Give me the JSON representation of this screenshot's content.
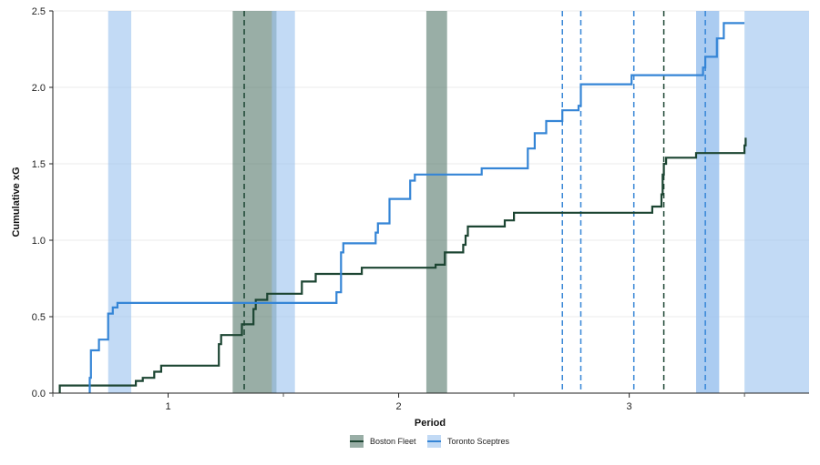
{
  "chart_data": {
    "type": "line",
    "title": "",
    "xlabel": "Period",
    "ylabel": "Cumulative xG",
    "xlim": [
      0.5,
      3.78
    ],
    "ylim": [
      0,
      2.5
    ],
    "yticks": [
      0.0,
      0.5,
      1.0,
      1.5,
      2.0,
      2.5
    ],
    "ytick_labels": [
      "0.0",
      "0.5",
      "1.0",
      "1.5",
      "2.0",
      "2.5"
    ],
    "xticks": [
      1,
      2,
      3
    ],
    "xtick_labels": [
      "1",
      "2",
      "3"
    ],
    "minor_xticks": [
      0.5,
      1.5,
      2.5,
      3.5
    ],
    "grid": "horizontal",
    "legend_position": "bottom-center",
    "series": [
      {
        "name": "Boston Fleet",
        "color": "#1c4532",
        "band_color": "#5a7d70",
        "points": [
          [
            0.53,
            0
          ],
          [
            0.53,
            0.05
          ],
          [
            0.86,
            0.05
          ],
          [
            0.86,
            0.08
          ],
          [
            0.89,
            0.08
          ],
          [
            0.89,
            0.1
          ],
          [
            0.94,
            0.1
          ],
          [
            0.94,
            0.14
          ],
          [
            0.97,
            0.14
          ],
          [
            0.97,
            0.18
          ],
          [
            1.22,
            0.18
          ],
          [
            1.22,
            0.32
          ],
          [
            1.23,
            0.32
          ],
          [
            1.23,
            0.38
          ],
          [
            1.32,
            0.38
          ],
          [
            1.32,
            0.45
          ],
          [
            1.37,
            0.45
          ],
          [
            1.37,
            0.55
          ],
          [
            1.38,
            0.55
          ],
          [
            1.38,
            0.61
          ],
          [
            1.43,
            0.61
          ],
          [
            1.43,
            0.65
          ],
          [
            1.58,
            0.65
          ],
          [
            1.58,
            0.73
          ],
          [
            1.64,
            0.73
          ],
          [
            1.64,
            0.78
          ],
          [
            1.84,
            0.78
          ],
          [
            1.84,
            0.82
          ],
          [
            2.16,
            0.82
          ],
          [
            2.16,
            0.84
          ],
          [
            2.2,
            0.84
          ],
          [
            2.2,
            0.92
          ],
          [
            2.28,
            0.92
          ],
          [
            2.28,
            0.97
          ],
          [
            2.29,
            0.97
          ],
          [
            2.29,
            1.03
          ],
          [
            2.3,
            1.03
          ],
          [
            2.3,
            1.09
          ],
          [
            2.46,
            1.09
          ],
          [
            2.46,
            1.13
          ],
          [
            2.5,
            1.13
          ],
          [
            2.5,
            1.18
          ],
          [
            3.1,
            1.18
          ],
          [
            3.1,
            1.22
          ],
          [
            3.14,
            1.22
          ],
          [
            3.14,
            1.3
          ],
          [
            3.145,
            1.3
          ],
          [
            3.145,
            1.43
          ],
          [
            3.15,
            1.43
          ],
          [
            3.15,
            1.5
          ],
          [
            3.16,
            1.5
          ],
          [
            3.16,
            1.54
          ],
          [
            3.29,
            1.54
          ],
          [
            3.29,
            1.57
          ],
          [
            3.5,
            1.57
          ],
          [
            3.5,
            1.62
          ],
          [
            3.505,
            1.62
          ],
          [
            3.505,
            1.67
          ]
        ]
      },
      {
        "name": "Toronto Sceptres",
        "color": "#3585d6",
        "band_color": "#9cc4ef",
        "points": [
          [
            0.66,
            0
          ],
          [
            0.66,
            0.1
          ],
          [
            0.665,
            0.1
          ],
          [
            0.665,
            0.28
          ],
          [
            0.7,
            0.28
          ],
          [
            0.7,
            0.35
          ],
          [
            0.74,
            0.35
          ],
          [
            0.74,
            0.52
          ],
          [
            0.76,
            0.52
          ],
          [
            0.76,
            0.56
          ],
          [
            0.78,
            0.56
          ],
          [
            0.78,
            0.59
          ],
          [
            1.73,
            0.59
          ],
          [
            1.73,
            0.66
          ],
          [
            1.75,
            0.66
          ],
          [
            1.75,
            0.92
          ],
          [
            1.76,
            0.92
          ],
          [
            1.76,
            0.98
          ],
          [
            1.9,
            0.98
          ],
          [
            1.9,
            1.05
          ],
          [
            1.91,
            1.05
          ],
          [
            1.91,
            1.11
          ],
          [
            1.96,
            1.11
          ],
          [
            1.96,
            1.27
          ],
          [
            2.05,
            1.27
          ],
          [
            2.05,
            1.39
          ],
          [
            2.07,
            1.39
          ],
          [
            2.07,
            1.43
          ],
          [
            2.36,
            1.43
          ],
          [
            2.36,
            1.47
          ],
          [
            2.56,
            1.47
          ],
          [
            2.56,
            1.6
          ],
          [
            2.59,
            1.6
          ],
          [
            2.59,
            1.7
          ],
          [
            2.64,
            1.7
          ],
          [
            2.64,
            1.78
          ],
          [
            2.71,
            1.78
          ],
          [
            2.71,
            1.85
          ],
          [
            2.78,
            1.85
          ],
          [
            2.78,
            1.88
          ],
          [
            2.79,
            1.88
          ],
          [
            2.79,
            2.02
          ],
          [
            3.01,
            2.02
          ],
          [
            3.01,
            2.08
          ],
          [
            3.32,
            2.08
          ],
          [
            3.32,
            2.13
          ],
          [
            3.33,
            2.13
          ],
          [
            3.33,
            2.2
          ],
          [
            3.38,
            2.2
          ],
          [
            3.38,
            2.32
          ],
          [
            3.41,
            2.32
          ],
          [
            3.41,
            2.42
          ],
          [
            3.5,
            2.42
          ]
        ]
      }
    ],
    "bands": [
      {
        "team": "Toronto Sceptres",
        "x0": 0.74,
        "x1": 0.84
      },
      {
        "team": "Boston Fleet",
        "x0": 1.28,
        "x1": 1.47
      },
      {
        "team": "Toronto Sceptres",
        "x0": 1.45,
        "x1": 1.55
      },
      {
        "team": "Boston Fleet",
        "x0": 2.12,
        "x1": 2.21
      },
      {
        "team": "Toronto Sceptres",
        "x0": 3.29,
        "x1": 3.39
      },
      {
        "team": "Toronto Sceptres",
        "x0": 3.29,
        "x1": 3.39
      },
      {
        "team": "Toronto Sceptres",
        "x0": 3.5,
        "x1": 3.78
      }
    ],
    "goal_lines": [
      {
        "team": "Boston Fleet",
        "x": 1.33
      },
      {
        "team": "Boston Fleet",
        "x": 3.15
      },
      {
        "team": "Toronto Sceptres",
        "x": 2.71
      },
      {
        "team": "Toronto Sceptres",
        "x": 2.79
      },
      {
        "team": "Toronto Sceptres",
        "x": 3.02
      },
      {
        "team": "Toronto Sceptres",
        "x": 3.33
      }
    ]
  }
}
